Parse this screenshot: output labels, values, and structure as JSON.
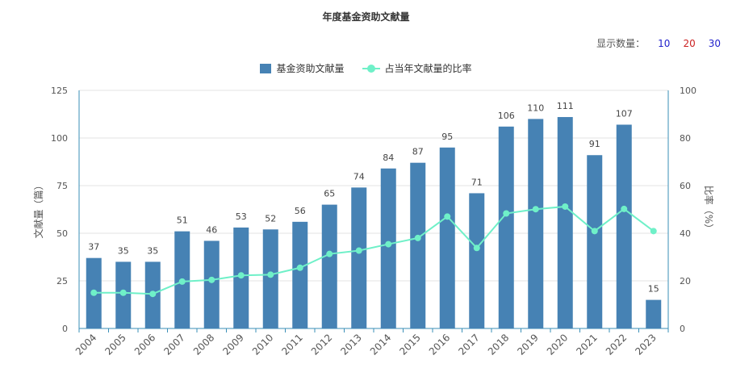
{
  "title": "年度基金资助文献量",
  "display_count": {
    "label": "显示数量：",
    "options": [
      {
        "label": "10",
        "color": "#2222cc"
      },
      {
        "label": "20",
        "color": "#cc2222"
      },
      {
        "label": "30",
        "color": "#2222cc"
      }
    ]
  },
  "colors": {
    "bar": "#4682b4",
    "line": "#6ff0c8",
    "axis": "#3a8fb7",
    "grid": "#e3e3e3",
    "text": "#555555"
  },
  "chart_data": {
    "type": "bar",
    "categories": [
      "2004",
      "2005",
      "2006",
      "2007",
      "2008",
      "2009",
      "2010",
      "2011",
      "2012",
      "2013",
      "2014",
      "2015",
      "2016",
      "2017",
      "2018",
      "2019",
      "2020",
      "2021",
      "2022",
      "2023"
    ],
    "series": [
      {
        "name": "基金资助文献量",
        "type": "bar",
        "axis": "left",
        "values": [
          37,
          35,
          35,
          51,
          46,
          53,
          52,
          56,
          65,
          74,
          84,
          87,
          95,
          71,
          106,
          110,
          111,
          91,
          107,
          15
        ]
      },
      {
        "name": "占当年文献量的比率",
        "type": "line",
        "axis": "right",
        "values": [
          15,
          15,
          14.5,
          19.7,
          20.4,
          22.3,
          22.6,
          25.5,
          31.3,
          32.7,
          35.4,
          38,
          47,
          33.8,
          48.3,
          50.1,
          51.2,
          40.9,
          50.2,
          40.9
        ]
      }
    ],
    "ylabel": "文献量（篇）",
    "y2label": "比率（%）",
    "ylim": [
      0,
      125
    ],
    "y2lim": [
      0,
      100
    ],
    "yticks": [
      0,
      25,
      50,
      75,
      100,
      125
    ],
    "y2ticks": [
      0,
      20,
      40,
      60,
      80,
      100
    ],
    "grid": true,
    "legend_position": "top-center"
  }
}
